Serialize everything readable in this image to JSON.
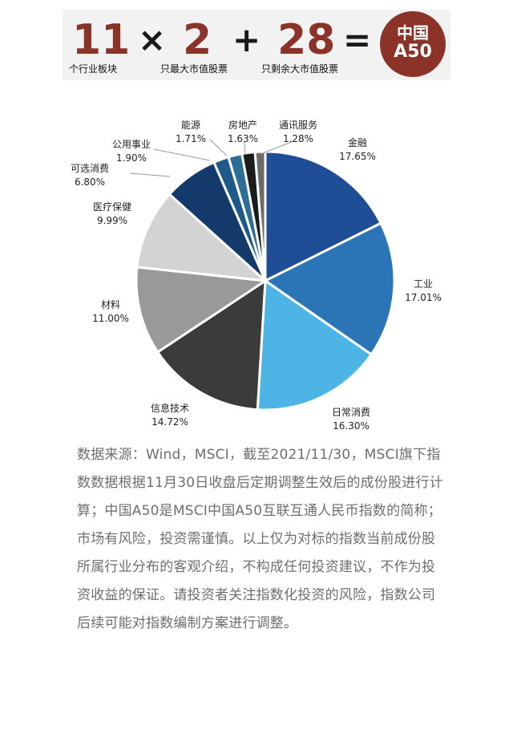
{
  "header": {
    "n1": "11",
    "cap1": "个行业板块",
    "op1": "×",
    "n2": "2",
    "cap2": "只最大市值股票",
    "op2": "+",
    "n3": "28",
    "cap3": "只剩余大市值股票",
    "op3": "=",
    "badge_line1": "中国",
    "badge_line2": "A50"
  },
  "chart_data": {
    "type": "pie",
    "slices": [
      {
        "name": "金融",
        "value": 17.65,
        "label": "17.65%",
        "color": "#1f4e96"
      },
      {
        "name": "工业",
        "value": 17.01,
        "label": "17.01%",
        "color": "#2b74b5"
      },
      {
        "name": "日常消费",
        "value": 16.3,
        "label": "16.30%",
        "color": "#4cb5e5"
      },
      {
        "name": "信息技术",
        "value": 14.72,
        "label": "14.72%",
        "color": "#3b3b3b"
      },
      {
        "name": "材料",
        "value": 11.0,
        "label": "11.00%",
        "color": "#999999"
      },
      {
        "name": "医疗保健",
        "value": 9.99,
        "label": "9.99%",
        "color": "#d3d3d3"
      },
      {
        "name": "可选消费",
        "value": 6.8,
        "label": "6.80%",
        "color": "#143a6c"
      },
      {
        "name": "公用事业",
        "value": 1.9,
        "label": "1.90%",
        "color": "#1d5a8a"
      },
      {
        "name": "能源",
        "value": 1.71,
        "label": "1.71%",
        "color": "#2c6e96"
      },
      {
        "name": "房地产",
        "value": 1.63,
        "label": "1.63%",
        "color": "#1c1c1c"
      },
      {
        "name": "通讯服务",
        "value": 1.28,
        "label": "1.28%",
        "color": "#6b6b6b"
      }
    ]
  },
  "note": "数据来源：Wind，MSCI，截至2021/11/30，MSCI旗下指数数据根据11月30日收盘后定期调整生效后的成份股进行计算；中国A50是MSCI中国A50互联互通人民币指数的简称；市场有风险，投资需谨慎。以上仅为对标的指数当前成份股所属行业分布的客观介绍，不构成任何投资建议，不作为投资收益的保证。请投资者关注指数化投资的风险，指数公司后续可能对指数编制方案进行调整。"
}
